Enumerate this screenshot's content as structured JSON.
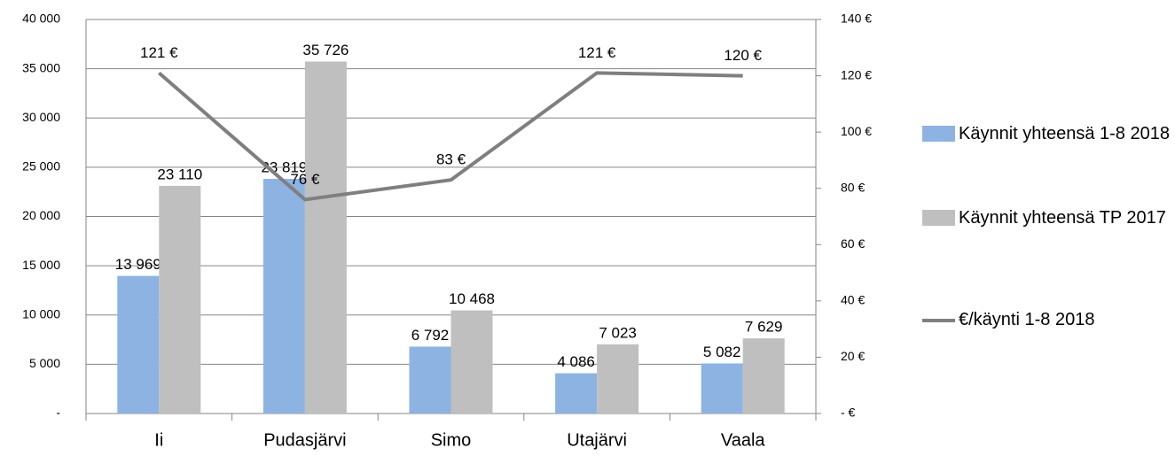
{
  "chart_data": {
    "type": "bar",
    "categories": [
      "Ii",
      "Pudasjärvi",
      "Simo",
      "Utajärvi",
      "Vaala"
    ],
    "series": [
      {
        "name": "Käynnit yhteensä 1-8 2018",
        "color": "#8db3e2",
        "values": [
          13969,
          23819,
          6792,
          4086,
          5082
        ],
        "value_labels": [
          "13 969",
          "23 819",
          "6 792",
          "4 086",
          "5 082"
        ]
      },
      {
        "name": "Käynnit yhteensä TP 2017",
        "color": "#bfbfbf",
        "values": [
          23110,
          35726,
          10468,
          7023,
          7629
        ],
        "value_labels": [
          "23 110",
          "35 726",
          "10 468",
          "7 023",
          "7 629"
        ]
      },
      {
        "name": "€/käynti 1-8 2018",
        "color": "#7f7f7f",
        "type": "line",
        "axis": "y2",
        "values": [
          121,
          76,
          83,
          121,
          120
        ],
        "value_labels": [
          "121 €",
          "76 €",
          "83 €",
          "121 €",
          "120 €"
        ]
      }
    ],
    "ylim": [
      0,
      40000
    ],
    "yticks": [
      {
        "value": 0,
        "label": "-"
      },
      {
        "value": 5000,
        "label": "5 000"
      },
      {
        "value": 10000,
        "label": "10 000"
      },
      {
        "value": 15000,
        "label": "15 000"
      },
      {
        "value": 20000,
        "label": "20 000"
      },
      {
        "value": 25000,
        "label": "25 000"
      },
      {
        "value": 30000,
        "label": "30 000"
      },
      {
        "value": 35000,
        "label": "35 000"
      },
      {
        "value": 40000,
        "label": "40 000"
      }
    ],
    "y2lim": [
      0,
      140
    ],
    "y2ticks": [
      {
        "value": 0,
        "label": "- €"
      },
      {
        "value": 20,
        "label": "20 €"
      },
      {
        "value": 40,
        "label": "40 €"
      },
      {
        "value": 60,
        "label": "60 €"
      },
      {
        "value": 80,
        "label": "80 €"
      },
      {
        "value": 100,
        "label": "100 €"
      },
      {
        "value": 120,
        "label": "120 €"
      },
      {
        "value": 140,
        "label": "140 €"
      }
    ],
    "grid": true,
    "legend": "right"
  }
}
